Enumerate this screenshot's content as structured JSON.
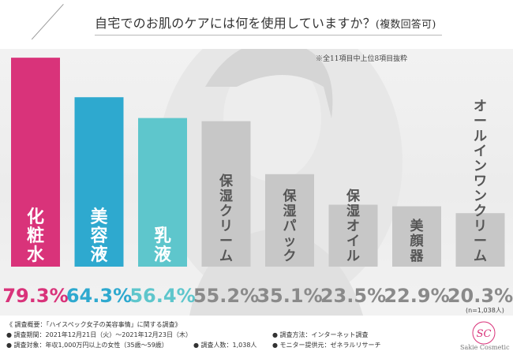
{
  "title": "自宅でのお肌のケアには何を使用していますか？",
  "title_suffix": "(複数回答可)",
  "note": "※全11項目中上位8項目抜粋",
  "sample_note": "(n=1,038人)",
  "chart_data": {
    "type": "bar",
    "categories": [
      "化粧水",
      "美容液",
      "乳液",
      "保湿クリーム",
      "保湿パック",
      "保湿オイル",
      "美顔器",
      "オールインワンクリーム"
    ],
    "values": [
      79.3,
      64.3,
      56.4,
      55.2,
      35.1,
      23.5,
      22.9,
      20.3
    ],
    "value_labels": [
      "79.3%",
      "64.3%",
      "56.4%",
      "55.2%",
      "35.1%",
      "23.5%",
      "22.9%",
      "20.3%"
    ],
    "colors": [
      "#d9337a",
      "#2ea9cf",
      "#5ec6cc",
      "#c7c7c7",
      "#c7c7c7",
      "#c7c7c7",
      "#c7c7c7",
      "#c7c7c7"
    ],
    "value_colors": [
      "#d9337a",
      "#2ea9cf",
      "#5ec6cc",
      "#8a8a8a",
      "#8a8a8a",
      "#8a8a8a",
      "#8a8a8a",
      "#8a8a8a"
    ],
    "ylim": [
      0,
      100
    ],
    "grid": false,
    "legend": "none"
  },
  "footer": {
    "heading": "《 調査概要：「ハイスペック女子の美容事情」に関する調査》",
    "period": "● 調査期間：2021年12月21日（火）～2021年12月23日（木）",
    "target": "● 調査対象：年収1,000万円以上の女性（35歳～59歳）",
    "count": "● 調査人数：1,038人",
    "method": "● 調査方法：インターネット調査",
    "provider": "● モニター提供元：ゼネラルリサーチ"
  },
  "logo": {
    "name": "Sakie Cosmetic",
    "monogram": "SC",
    "color": "#d9337a"
  }
}
